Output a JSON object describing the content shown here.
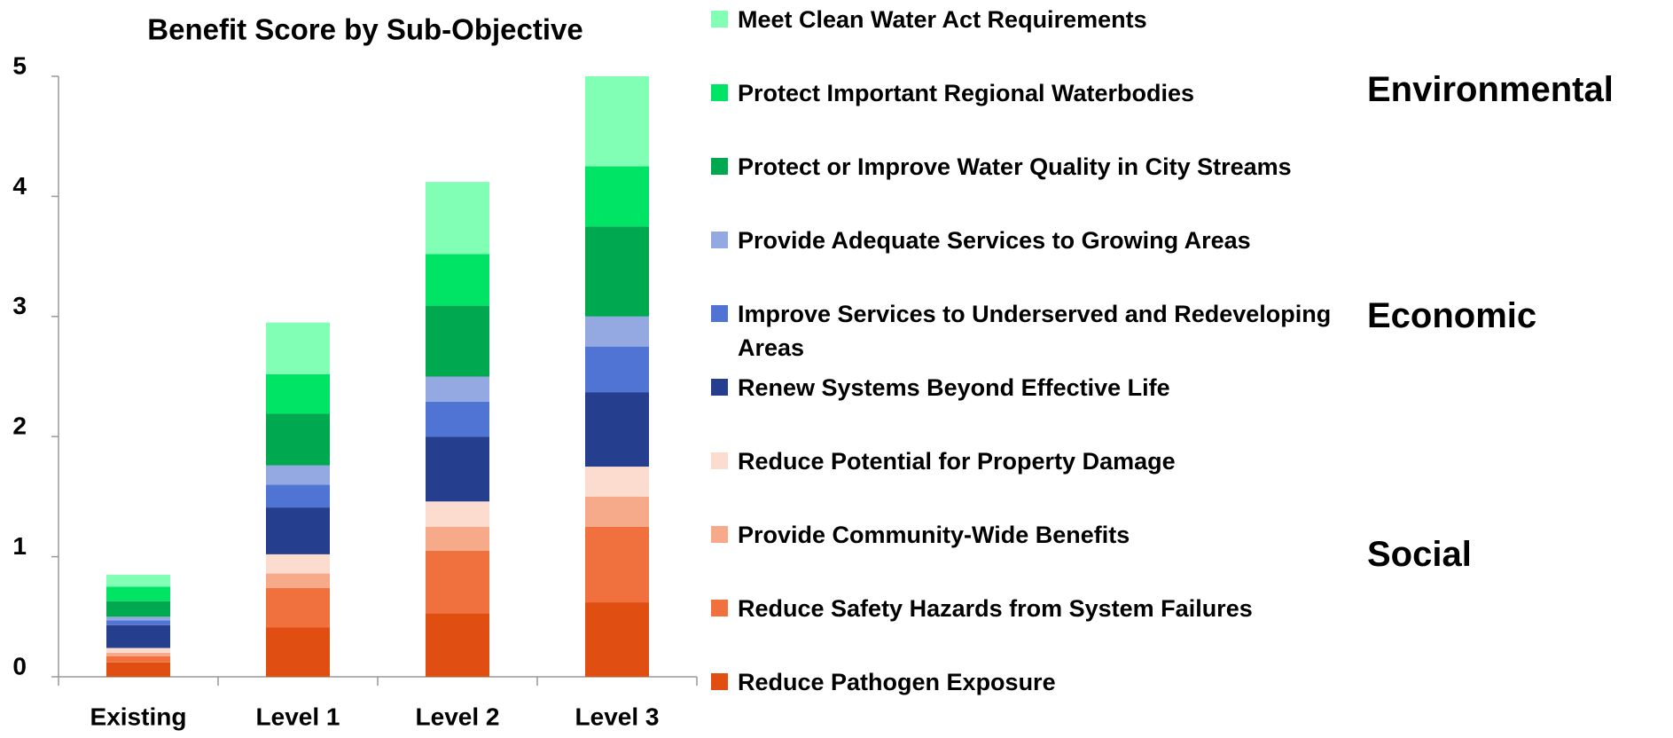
{
  "chart_data": {
    "type": "stacked_bar",
    "title": "Benefit Score by Sub-Objective",
    "categories": [
      "Existing",
      "Level 1",
      "Level 2",
      "Level 3"
    ],
    "series": [
      {
        "name": "Reduce Pathogen Exposure",
        "color": "#e04e12",
        "values": [
          0.12,
          0.41,
          0.53,
          0.62
        ]
      },
      {
        "name": "Reduce Safety Hazards from System Failures",
        "color": "#f0703e",
        "values": [
          0.05,
          0.33,
          0.52,
          0.63
        ]
      },
      {
        "name": "Provide Community-Wide Benefits",
        "color": "#f6aa8a",
        "values": [
          0.03,
          0.12,
          0.2,
          0.25
        ]
      },
      {
        "name": "Reduce Potential for Property Damage",
        "color": "#fbdccf",
        "values": [
          0.04,
          0.16,
          0.21,
          0.25
        ]
      },
      {
        "name": "Renew Systems Beyond Effective Life",
        "color": "#253f8e",
        "values": [
          0.19,
          0.39,
          0.54,
          0.62
        ]
      },
      {
        "name": "Improve Services to Underserved and Redeveloping Areas",
        "color": "#4f74d4",
        "values": [
          0.04,
          0.19,
          0.29,
          0.38
        ]
      },
      {
        "name": "Provide Adequate Services to Growing Areas",
        "color": "#94a8e2",
        "values": [
          0.03,
          0.16,
          0.21,
          0.25
        ]
      },
      {
        "name": "Protect or Improve Water Quality in City Streams",
        "color": "#00a850",
        "values": [
          0.13,
          0.43,
          0.59,
          0.75
        ]
      },
      {
        "name": "Protect Important Regional Waterbodies",
        "color": "#00e466",
        "values": [
          0.12,
          0.33,
          0.43,
          0.5
        ]
      },
      {
        "name": "Meet Clean Water Act Requirements",
        "color": "#80ffb5",
        "values": [
          0.1,
          0.43,
          0.6,
          0.75
        ]
      }
    ],
    "ylim": [
      0,
      5
    ],
    "yticks": [
      0,
      1,
      2,
      3,
      4,
      5
    ],
    "group_labels": [
      "Environmental",
      "Economic",
      "Social"
    ]
  }
}
